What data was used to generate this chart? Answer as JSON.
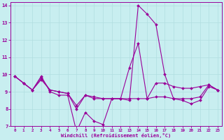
{
  "xlabel": "Windchill (Refroidissement éolien,°C)",
  "background_color": "#c8eef0",
  "grid_color": "#b0dde0",
  "line_color": "#990099",
  "xlim": [
    -0.5,
    23.5
  ],
  "ylim": [
    7,
    14.2
  ],
  "yticks": [
    7,
    8,
    9,
    10,
    11,
    12,
    13,
    14
  ],
  "xticks": [
    0,
    1,
    2,
    3,
    4,
    5,
    6,
    7,
    8,
    9,
    10,
    11,
    12,
    13,
    14,
    15,
    16,
    17,
    18,
    19,
    20,
    21,
    22,
    23
  ],
  "series1_x": [
    0,
    1,
    2,
    3,
    4,
    5,
    6,
    7,
    8,
    9,
    10,
    11,
    12,
    13,
    14,
    15,
    16,
    17,
    18,
    19,
    20,
    21,
    22,
    23
  ],
  "series1_y": [
    9.9,
    9.5,
    9.1,
    9.9,
    9.0,
    8.8,
    8.8,
    6.7,
    7.8,
    7.3,
    7.1,
    8.6,
    8.6,
    8.5,
    14.0,
    13.5,
    12.9,
    10.0,
    8.6,
    8.5,
    8.3,
    8.5,
    9.3,
    9.1
  ],
  "series2_x": [
    0,
    1,
    2,
    3,
    4,
    5,
    6,
    7,
    8,
    9,
    10,
    11,
    12,
    13,
    14,
    15,
    16,
    17,
    18,
    19,
    20,
    21,
    22,
    23
  ],
  "series2_y": [
    9.9,
    9.5,
    9.1,
    9.8,
    9.1,
    9.0,
    8.9,
    8.0,
    8.8,
    8.6,
    8.6,
    8.6,
    8.6,
    10.4,
    11.8,
    8.6,
    9.5,
    9.5,
    9.3,
    9.2,
    9.2,
    9.3,
    9.4,
    9.1
  ],
  "series3_x": [
    0,
    1,
    2,
    3,
    4,
    5,
    6,
    7,
    8,
    9,
    10,
    11,
    12,
    13,
    14,
    15,
    16,
    17,
    18,
    19,
    20,
    21,
    22,
    23
  ],
  "series3_y": [
    9.9,
    9.5,
    9.1,
    9.7,
    9.1,
    9.0,
    8.9,
    8.2,
    8.8,
    8.7,
    8.6,
    8.6,
    8.6,
    8.6,
    8.6,
    8.6,
    8.7,
    8.7,
    8.6,
    8.6,
    8.6,
    8.7,
    9.4,
    9.1
  ]
}
